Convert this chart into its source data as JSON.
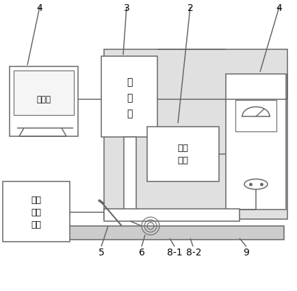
{
  "bg_color": "#ffffff",
  "line_color": "#666666",
  "box_color": "#ffffff",
  "box_edge": "#666666",
  "gray_bg": "#e0e0e0",
  "figsize": [
    4.34,
    4.25
  ],
  "dpi": 100,
  "labels": {
    "4_tl": "4",
    "3": "3",
    "2": "2",
    "4_tr": "4",
    "xian_quan": "线圈\n变位\n机构",
    "5": "5",
    "6": "6",
    "81": "8-1",
    "82": "8-2",
    "9": "9",
    "ji_suan_ji": "计算机",
    "dan_pian_ji": "单\n片\n机",
    "leng_que": "冷却\n水箱"
  }
}
